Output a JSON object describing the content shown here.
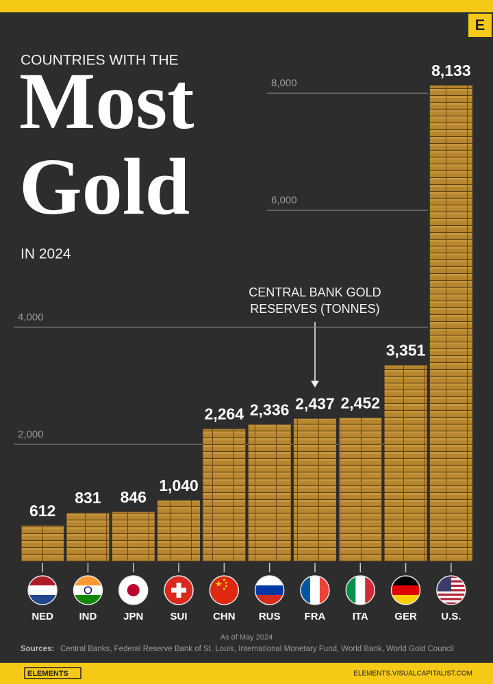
{
  "chart_data": {
    "type": "bar",
    "pretitle": "COUNTRIES WITH THE",
    "title_lines": [
      "Most",
      "Gold"
    ],
    "subtitle": "IN 2024",
    "annotation_lines": [
      "CENTRAL BANK GOLD",
      "RESERVES (TONNES)"
    ],
    "categories": [
      "NED",
      "IND",
      "JPN",
      "SUI",
      "CHN",
      "RUS",
      "FRA",
      "ITA",
      "GER",
      "U.S."
    ],
    "values": [
      612,
      831,
      846,
      1040,
      2264,
      2336,
      2437,
      2452,
      3351,
      8133
    ],
    "value_labels": [
      "612",
      "831",
      "846",
      "1,040",
      "2,264",
      "2,336",
      "2,437",
      "2,452",
      "3,351",
      "8,133"
    ],
    "color": "#b8862e",
    "ylim": [
      0,
      8200
    ],
    "yticks": [
      {
        "value": 2000,
        "label": "2,000"
      },
      {
        "value": 4000,
        "label": "4,000"
      },
      {
        "value": 6000,
        "label": "6,000"
      },
      {
        "value": 8000,
        "label": "8,000"
      }
    ],
    "grid": true,
    "note": "As of May 2024",
    "sources_label": "Sources:",
    "sources": "Central Banks, Federal Reserve Bank of St. Louis, International Monetary Fund, World Bank, World Gold Council",
    "brand": "ELEMENTS",
    "brand_url": "ELEMENTS.VISUALCAPITALIST.COM",
    "logo": "E"
  }
}
